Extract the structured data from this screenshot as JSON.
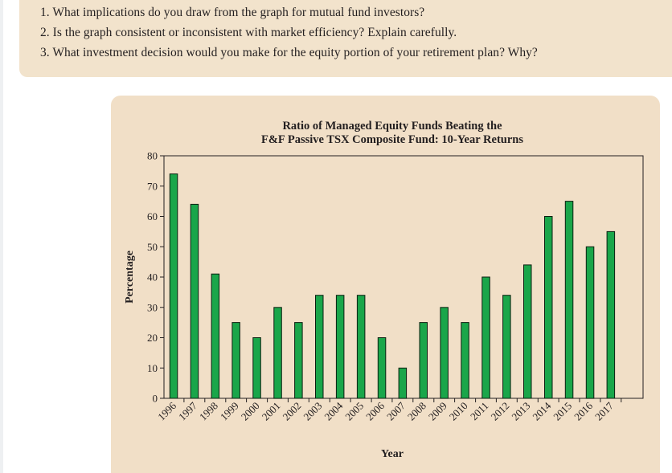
{
  "questions": [
    "1. What implications do you draw from the graph for mutual fund investors?",
    "2. Is the graph consistent or inconsistent with market efficiency? Explain carefully.",
    "3. What investment decision would you make for the equity portion of your retirement plan? Why?"
  ],
  "colors": {
    "bar_fill": "#1aa64a",
    "bar_stroke": "#0b1f10",
    "panel_bg": "#f1dfc7",
    "card_bg": "#f2e3cc"
  },
  "chart_data": {
    "type": "bar",
    "title": "Ratio of Managed Equity Funds Beating the",
    "subtitle": "F&F Passive TSX Composite Fund: 10-Year Returns",
    "xlabel": "Year",
    "ylabel": "Percentage",
    "ylim": [
      0,
      80
    ],
    "yticks": [
      0,
      10,
      20,
      30,
      40,
      50,
      60,
      70,
      80
    ],
    "categories": [
      "1996",
      "1997",
      "1998",
      "1999",
      "2000",
      "2001",
      "2002",
      "2003",
      "2004",
      "2005",
      "2006",
      "2007",
      "2008",
      "2009",
      "2010",
      "2011",
      "2012",
      "2013",
      "2014",
      "2015",
      "2016",
      "2017"
    ],
    "values": [
      74,
      64,
      41,
      25,
      20,
      30,
      25,
      34,
      34,
      34,
      20,
      10,
      25,
      30,
      25,
      40,
      34,
      44,
      60,
      65,
      50,
      55
    ]
  }
}
